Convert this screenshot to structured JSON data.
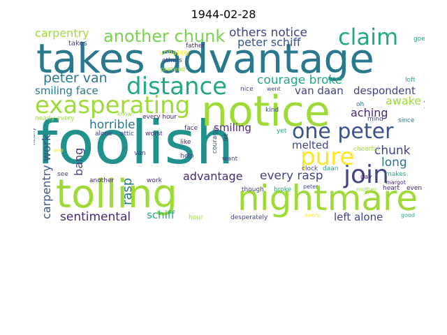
{
  "title": "1944-02-28",
  "palette": {
    "teal": "#2a788e",
    "darkteal": "#21918c",
    "green": "#22a884",
    "lightgreen": "#7ad151",
    "lime": "#a0da39",
    "yellow": "#fde725",
    "purple": "#482878",
    "indigo": "#414487",
    "slate": "#3b528b"
  },
  "words": [
    {
      "text": "foolish",
      "c": "darkteal"
    },
    {
      "text": "takes advantage",
      "c": "teal"
    },
    {
      "text": "notice",
      "c": "lime"
    },
    {
      "text": "tolling",
      "c": "lime"
    },
    {
      "text": "nightmare",
      "c": "lime"
    },
    {
      "text": "exasperating",
      "c": "lime"
    },
    {
      "text": "distance",
      "c": "green"
    },
    {
      "text": "one peter",
      "c": "slate"
    },
    {
      "text": "claim",
      "c": "green"
    },
    {
      "text": "join",
      "c": "indigo"
    },
    {
      "text": "pure",
      "c": "yellow"
    },
    {
      "text": "another chunk",
      "c": "lightgreen"
    },
    {
      "text": "carpentry",
      "c": "lime"
    },
    {
      "text": "others notice",
      "c": "indigo"
    },
    {
      "text": "peter schiff",
      "c": "slate"
    },
    {
      "text": "peter van",
      "c": "teal"
    },
    {
      "text": "courage broke",
      "c": "green"
    },
    {
      "text": "smiling face",
      "c": "teal"
    },
    {
      "text": "van daan",
      "c": "indigo"
    },
    {
      "text": "despondent",
      "c": "indigo"
    },
    {
      "text": "aching",
      "c": "purple"
    },
    {
      "text": "awake",
      "c": "lime"
    },
    {
      "text": "horrible",
      "c": "teal"
    },
    {
      "text": "smiling",
      "c": "purple"
    },
    {
      "text": "melted",
      "c": "indigo"
    },
    {
      "text": "chunk",
      "c": "indigo"
    },
    {
      "text": "long",
      "c": "teal"
    },
    {
      "text": "advantage",
      "c": "purple"
    },
    {
      "text": "every rasp",
      "c": "indigo"
    },
    {
      "text": "carpentry work",
      "c": "slate"
    },
    {
      "text": "bang",
      "c": "indigo"
    },
    {
      "text": "rasp",
      "c": "teal"
    },
    {
      "text": "sentimental",
      "c": "purple"
    },
    {
      "text": "schiff",
      "c": "green"
    },
    {
      "text": "left alone",
      "c": "indigo"
    },
    {
      "text": "unhappy",
      "c": "yellow"
    },
    {
      "text": "takes",
      "c": "indigo"
    },
    {
      "text": "father",
      "c": "purple"
    },
    {
      "text": "others",
      "c": "indigo"
    },
    {
      "text": "pretend",
      "c": "lime"
    },
    {
      "text": "goes",
      "c": "green"
    },
    {
      "text": "loft",
      "c": "green"
    },
    {
      "text": "nice",
      "c": "indigo"
    },
    {
      "text": "went",
      "c": "indigo"
    },
    {
      "text": "kind",
      "c": "indigo"
    },
    {
      "text": "oh",
      "c": "teal"
    },
    {
      "text": "mind",
      "c": "indigo"
    },
    {
      "text": "since",
      "c": "teal"
    },
    {
      "text": "left",
      "c": "teal"
    },
    {
      "text": "know",
      "c": "lime"
    },
    {
      "text": "nearly every",
      "c": "lime"
    },
    {
      "text": "every hour",
      "c": "purple"
    },
    {
      "text": "alone",
      "c": "indigo"
    },
    {
      "text": "attic",
      "c": "indigo"
    },
    {
      "text": "worst",
      "c": "purple"
    },
    {
      "text": "face",
      "c": "purple"
    },
    {
      "text": "yet",
      "c": "green"
    },
    {
      "text": "cheerful",
      "c": "lime"
    },
    {
      "text": "nearly",
      "c": "slate"
    },
    {
      "text": "one",
      "c": "yellow"
    },
    {
      "text": "like",
      "c": "purple"
    },
    {
      "text": "help",
      "c": "indigo"
    },
    {
      "text": "van",
      "c": "indigo"
    },
    {
      "text": "courage",
      "c": "slate"
    },
    {
      "text": "let",
      "c": "purple"
    },
    {
      "text": "want",
      "c": "indigo"
    },
    {
      "text": "clock",
      "c": "indigo"
    },
    {
      "text": "daan",
      "c": "green"
    },
    {
      "text": "day",
      "c": "purple"
    },
    {
      "text": "makes",
      "c": "green"
    },
    {
      "text": "margot",
      "c": "purple"
    },
    {
      "text": "see",
      "c": "indigo"
    },
    {
      "text": "another",
      "c": "purple"
    },
    {
      "text": "work",
      "c": "purple"
    },
    {
      "text": "though",
      "c": "indigo"
    },
    {
      "text": "broke",
      "c": "green"
    },
    {
      "text": "peter",
      "c": "indigo"
    },
    {
      "text": "mother",
      "c": "lime"
    },
    {
      "text": "heart",
      "c": "purple"
    },
    {
      "text": "even",
      "c": "purple"
    },
    {
      "text": "hour",
      "c": "lime"
    },
    {
      "text": "desperately",
      "c": "indigo"
    },
    {
      "text": "every",
      "c": "yellow"
    },
    {
      "text": "good",
      "c": "green"
    }
  ]
}
